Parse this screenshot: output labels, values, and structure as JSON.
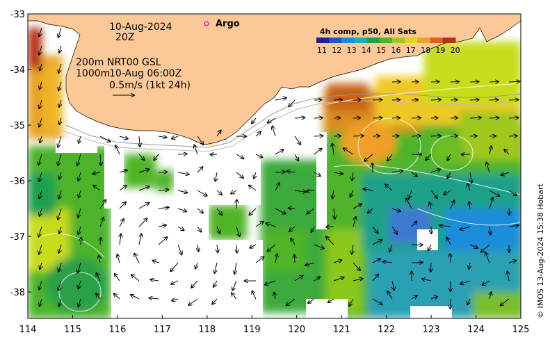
{
  "map": {
    "date_line": "10-Aug-2024",
    "time_line": "20Z",
    "depth_label_1": "200m",
    "depth_label_2": "1000m",
    "current_source": "NRT00 GSL",
    "current_time": "10-Aug 06:00Z",
    "vector_scale": "0.5m/s (1kt 24h)",
    "argo_label": "Argo",
    "credit": "© IMOS 13-Aug-2024 15:38 Hobart",
    "x_ticks": [
      "114",
      "115",
      "116",
      "117",
      "118",
      "119",
      "120",
      "121",
      "122",
      "123",
      "124",
      "125"
    ],
    "y_ticks": [
      "-33",
      "-34",
      "-35",
      "-36",
      "-37",
      "-38"
    ],
    "colorbar": {
      "title": "4h comp, p50, All Sats",
      "ticks": [
        "11",
        "12",
        "13",
        "14",
        "15",
        "16",
        "17",
        "18",
        "19",
        "20"
      ],
      "colors": [
        "#1e1e96",
        "#2850c8",
        "#1e8cdc",
        "#14b4b4",
        "#1ea050",
        "#50b428",
        "#a0c81e",
        "#e6d21e",
        "#f0a028",
        "#dc6414",
        "#b43214"
      ]
    },
    "colors": {
      "land": "#fcc898",
      "argo": "#e614c8"
    }
  }
}
